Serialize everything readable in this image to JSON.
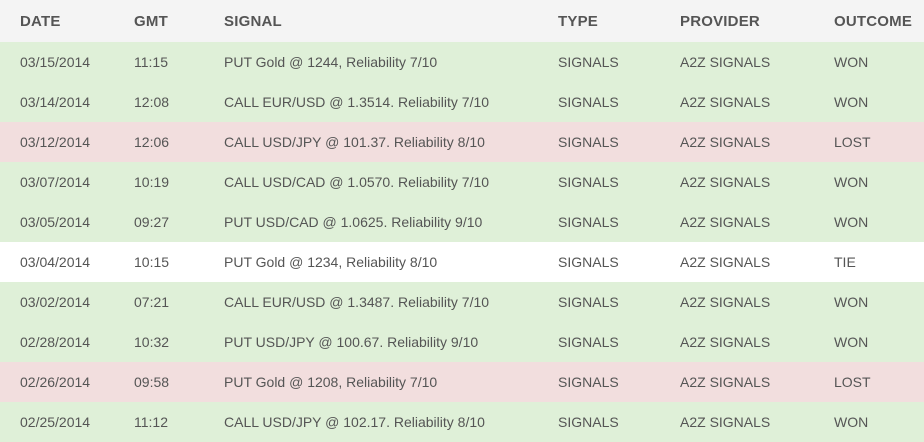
{
  "table": {
    "headers": {
      "date": "DATE",
      "gmt": "GMT",
      "signal": "SIGNAL",
      "type": "TYPE",
      "provider": "PROVIDER",
      "outcome": "OUTCOME"
    },
    "colors": {
      "won": "#dff0d8",
      "lost": "#f2dede",
      "tie": "#ffffff",
      "header": "#f4f4f4",
      "text": "#555555"
    },
    "rows": [
      {
        "date": "03/15/2014",
        "gmt": "11:15",
        "signal": "PUT Gold @ 1244, Reliability 7/10",
        "type": "SIGNALS",
        "provider": "A2Z SIGNALS",
        "outcome": "WON"
      },
      {
        "date": "03/14/2014",
        "gmt": "12:08",
        "signal": "CALL EUR/USD @ 1.3514. Reliability 7/10",
        "type": "SIGNALS",
        "provider": "A2Z SIGNALS",
        "outcome": "WON"
      },
      {
        "date": "03/12/2014",
        "gmt": "12:06",
        "signal": "CALL USD/JPY @ 101.37. Reliability 8/10",
        "type": "SIGNALS",
        "provider": "A2Z SIGNALS",
        "outcome": "LOST"
      },
      {
        "date": "03/07/2014",
        "gmt": "10:19",
        "signal": "CALL USD/CAD @ 1.0570. Reliability 7/10",
        "type": "SIGNALS",
        "provider": "A2Z SIGNALS",
        "outcome": "WON"
      },
      {
        "date": "03/05/2014",
        "gmt": "09:27",
        "signal": "PUT USD/CAD @ 1.0625. Reliability 9/10",
        "type": "SIGNALS",
        "provider": "A2Z SIGNALS",
        "outcome": "WON"
      },
      {
        "date": "03/04/2014",
        "gmt": "10:15",
        "signal": "PUT Gold @ 1234, Reliability 8/10",
        "type": "SIGNALS",
        "provider": "A2Z SIGNALS",
        "outcome": "TIE"
      },
      {
        "date": "03/02/2014",
        "gmt": "07:21",
        "signal": "CALL EUR/USD @ 1.3487. Reliability 7/10",
        "type": "SIGNALS",
        "provider": "A2Z SIGNALS",
        "outcome": "WON"
      },
      {
        "date": "02/28/2014",
        "gmt": "10:32",
        "signal": "PUT USD/JPY @ 100.67. Reliability 9/10",
        "type": "SIGNALS",
        "provider": "A2Z SIGNALS",
        "outcome": "WON"
      },
      {
        "date": "02/26/2014",
        "gmt": "09:58",
        "signal": "PUT Gold @ 1208, Reliability 7/10",
        "type": "SIGNALS",
        "provider": "A2Z SIGNALS",
        "outcome": "LOST"
      },
      {
        "date": "02/25/2014",
        "gmt": "11:12",
        "signal": "CALL USD/JPY @ 102.17. Reliability 8/10",
        "type": "SIGNALS",
        "provider": "A2Z SIGNALS",
        "outcome": "WON"
      }
    ]
  }
}
